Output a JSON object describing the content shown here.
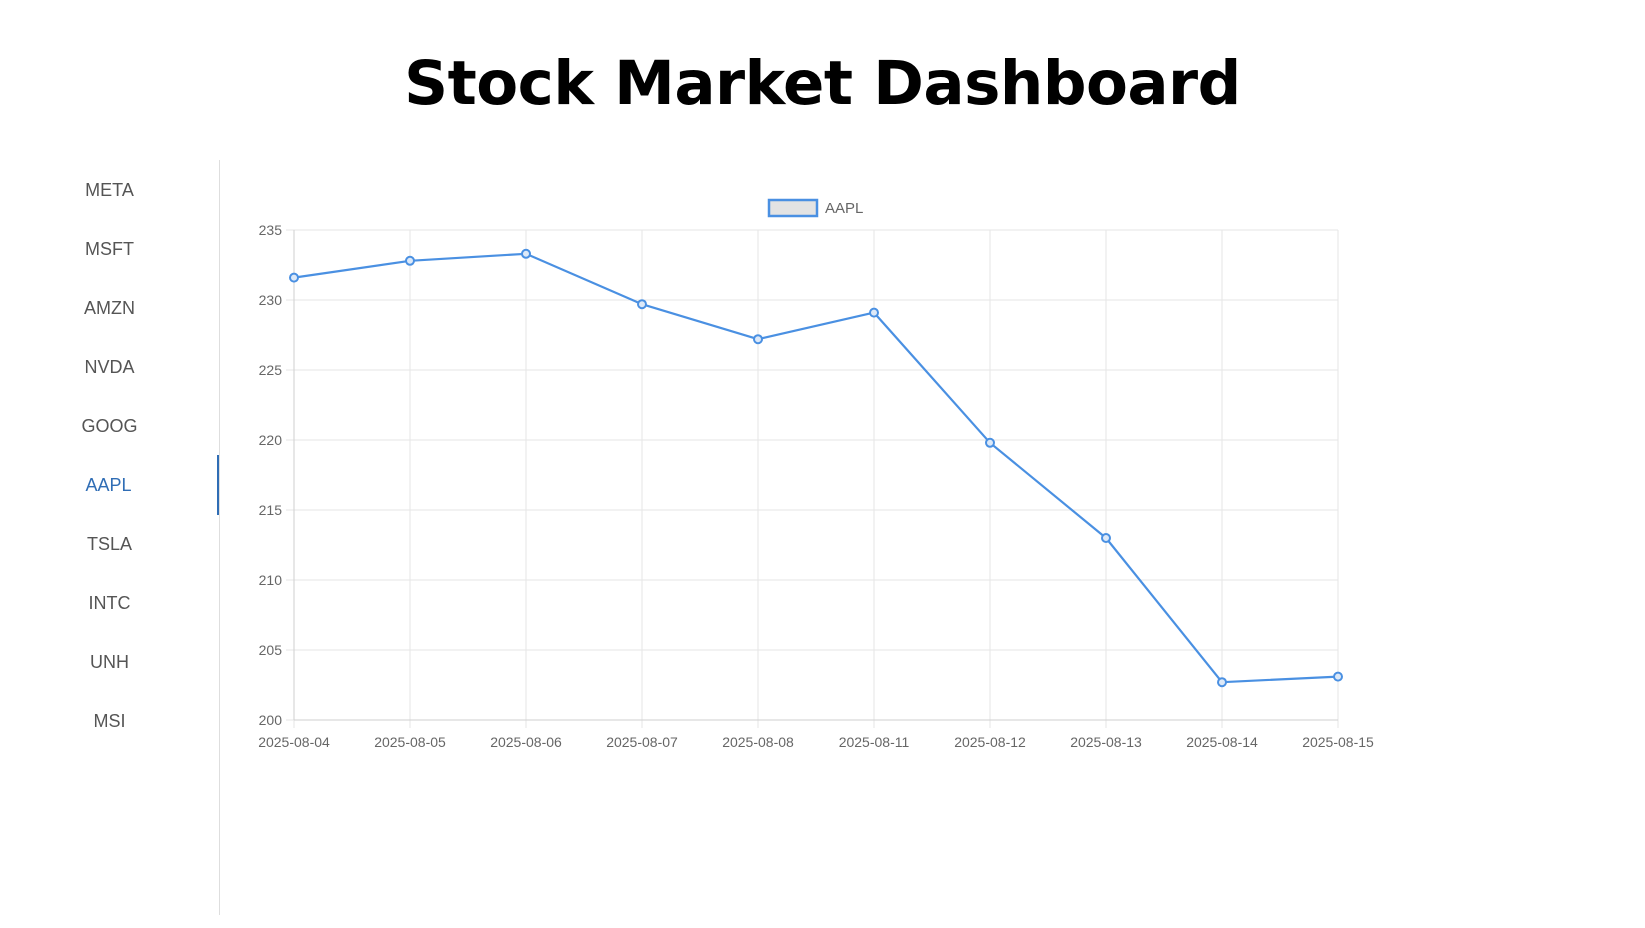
{
  "page": {
    "title": "Stock Market Dashboard"
  },
  "sidebar": {
    "items": [
      {
        "label": "META",
        "active": false
      },
      {
        "label": "MSFT",
        "active": false
      },
      {
        "label": "AMZN",
        "active": false
      },
      {
        "label": "NVDA",
        "active": false
      },
      {
        "label": "GOOG",
        "active": false
      },
      {
        "label": "AAPL",
        "active": true
      },
      {
        "label": "TSLA",
        "active": false
      },
      {
        "label": "INTC",
        "active": false
      },
      {
        "label": "UNH",
        "active": false
      },
      {
        "label": "MSI",
        "active": false
      }
    ]
  },
  "colors": {
    "accent": "#2f6db5",
    "series_line": "#4a90e2",
    "legend_fill": "#e3e3e3",
    "grid": "#e6e6e6",
    "tick_text": "#666666"
  },
  "chart_data": {
    "type": "line",
    "x": [
      "2025-08-04",
      "2025-08-05",
      "2025-08-06",
      "2025-08-07",
      "2025-08-08",
      "2025-08-11",
      "2025-08-12",
      "2025-08-13",
      "2025-08-14",
      "2025-08-15"
    ],
    "series": [
      {
        "name": "AAPL",
        "values": [
          231.6,
          232.8,
          233.3,
          229.7,
          227.2,
          229.1,
          219.8,
          213.0,
          202.7,
          203.1
        ]
      }
    ],
    "ylim": [
      200,
      235
    ],
    "yticks": [
      200,
      205,
      210,
      215,
      220,
      225,
      230,
      235
    ],
    "grid": true,
    "legend_position": "top-center"
  }
}
